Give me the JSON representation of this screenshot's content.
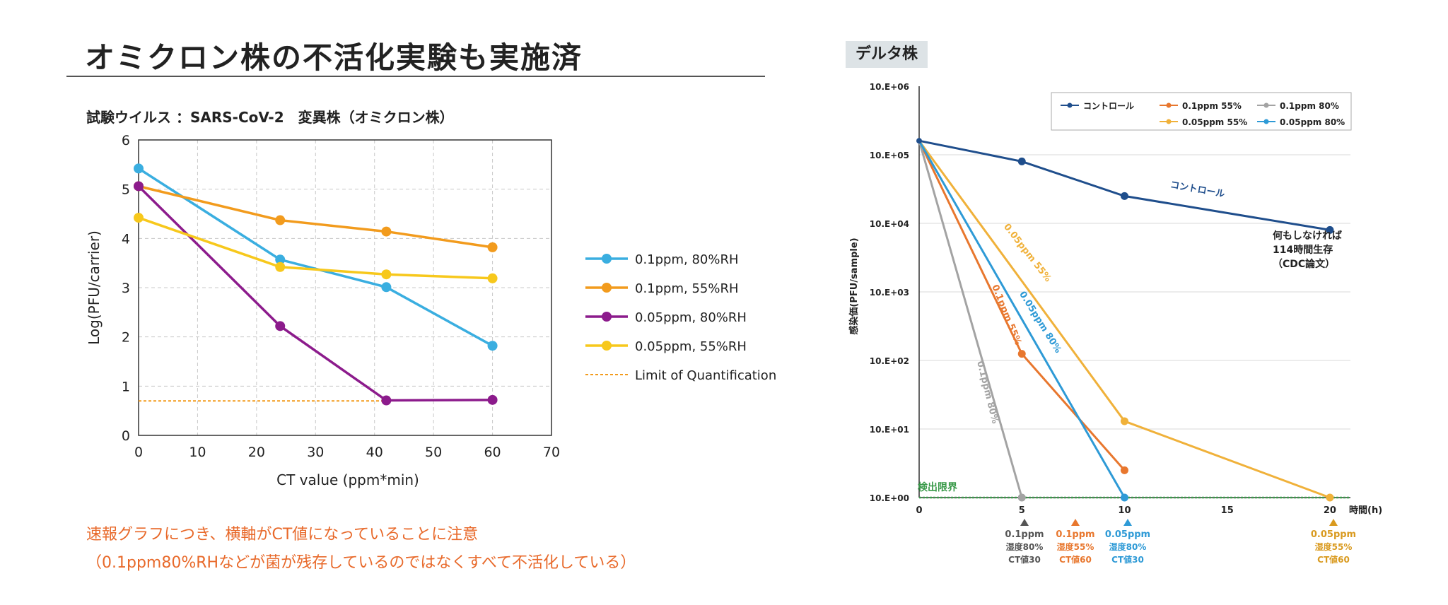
{
  "left": {
    "title": "オミクロン株の不活化実験も実施済",
    "virus_line": "試験ウイルス ：SARS-CoV-2　変異株（オミクロン株）",
    "note_line1": "速報グラフにつき、横軸がCT値になっていることに注意",
    "note_line2": "（0.1ppm80%RHなどが菌が残存しているのではなくすべて不活化している）"
  },
  "right": {
    "title": "デルタ株",
    "bottom_labels": [
      {
        "line1": "0.1ppm",
        "line2": "湿度80%",
        "line3": "CT値30",
        "color": "#555555"
      },
      {
        "line1": "0.1ppm",
        "line2": "湿度55%",
        "line3": "CT値60",
        "color": "#e8772e"
      },
      {
        "line1": "0.05ppm",
        "line2": "湿度80%",
        "line3": "CT値30",
        "color": "#2e9ad6"
      },
      {
        "line1": "0.05ppm",
        "line2": "湿度55%",
        "line3": "CT値60",
        "color": "#d99a1f"
      }
    ]
  },
  "chart_data": [
    {
      "type": "line",
      "title": "",
      "xlabel": "CT value (ppm*min)",
      "ylabel": "Log(PFU/carrier)",
      "xlim": [
        0,
        70
      ],
      "ylim": [
        0,
        6
      ],
      "x_ticks": [
        "0",
        "10",
        "20",
        "30",
        "40",
        "50",
        "60",
        "70"
      ],
      "y_ticks": [
        "0",
        "1",
        "2",
        "3",
        "4",
        "5",
        "6"
      ],
      "grid": true,
      "legend_position": "right",
      "series": [
        {
          "name": "0.1ppm, 80%RH",
          "color": "#3aaee0",
          "points": [
            [
              0,
              5.42
            ],
            [
              24,
              3.57
            ],
            [
              42,
              3.01
            ],
            [
              60,
              1.82
            ]
          ]
        },
        {
          "name": "0.1ppm, 55%RH",
          "color": "#f29b1d",
          "points": [
            [
              0,
              5.06
            ],
            [
              24,
              4.37
            ],
            [
              42,
              4.14
            ],
            [
              60,
              3.82
            ]
          ]
        },
        {
          "name": "0.05ppm, 80%RH",
          "color": "#8c1b8c",
          "points": [
            [
              0,
              5.06
            ],
            [
              24,
              2.22
            ],
            [
              42,
              0.71
            ],
            [
              60,
              0.72
            ]
          ]
        },
        {
          "name": "0.05ppm, 55%RH",
          "color": "#f7c81c",
          "points": [
            [
              0,
              4.42
            ],
            [
              24,
              3.42
            ],
            [
              42,
              3.27
            ],
            [
              60,
              3.19
            ]
          ]
        }
      ],
      "reference_line": {
        "name": "Limit of Quantification",
        "value": 0.7,
        "x_range": [
          0,
          42
        ],
        "color": "#f29b1d"
      }
    },
    {
      "type": "line",
      "title": "",
      "xlabel": "時間(h)",
      "ylabel": "感染価(PFU/sample)",
      "xlim": [
        0,
        21
      ],
      "ylim_log10": [
        0,
        6
      ],
      "scale": "log",
      "x_ticks": [
        "0",
        "5",
        "10",
        "15",
        "20"
      ],
      "y_ticks": [
        "10.E+00",
        "10.E+01",
        "10.E+02",
        "10.E+03",
        "10.E+04",
        "10.E+05",
        "10.E+06"
      ],
      "grid": true,
      "legend_position": "top-right",
      "series": [
        {
          "name": "コントロール",
          "color": "#1f4e8c",
          "points": [
            [
              0,
              160000
            ],
            [
              5,
              80000
            ],
            [
              10,
              25000
            ],
            [
              20,
              8000
            ]
          ],
          "inline_label": "コントロール"
        },
        {
          "name": "0.1ppm 55%",
          "color": "#e8772e",
          "points": [
            [
              0,
              160000
            ],
            [
              5,
              125
            ],
            [
              10,
              2.5
            ]
          ],
          "inline_label": "0.1ppm 55%"
        },
        {
          "name": "0.1ppm 80%",
          "color": "#a3a3a3",
          "points": [
            [
              0,
              160000
            ],
            [
              5,
              1
            ]
          ],
          "inline_label": "0.1ppm 80%"
        },
        {
          "name": "0.05ppm 55%",
          "color": "#f0b13a",
          "points": [
            [
              0,
              160000
            ],
            [
              10,
              13
            ],
            [
              20,
              1
            ]
          ],
          "inline_label": "0.05ppm 55%"
        },
        {
          "name": "0.05ppm 80%",
          "color": "#2e9ad6",
          "points": [
            [
              0,
              160000
            ],
            [
              10,
              1
            ]
          ],
          "inline_label": "0.05ppm 80%"
        }
      ],
      "reference_line": {
        "name": "検出限界",
        "value": 1,
        "color": "#3a9a4a"
      },
      "annotation": [
        "何もしなければ",
        "114時間生存",
        "（CDC論文）"
      ]
    }
  ]
}
